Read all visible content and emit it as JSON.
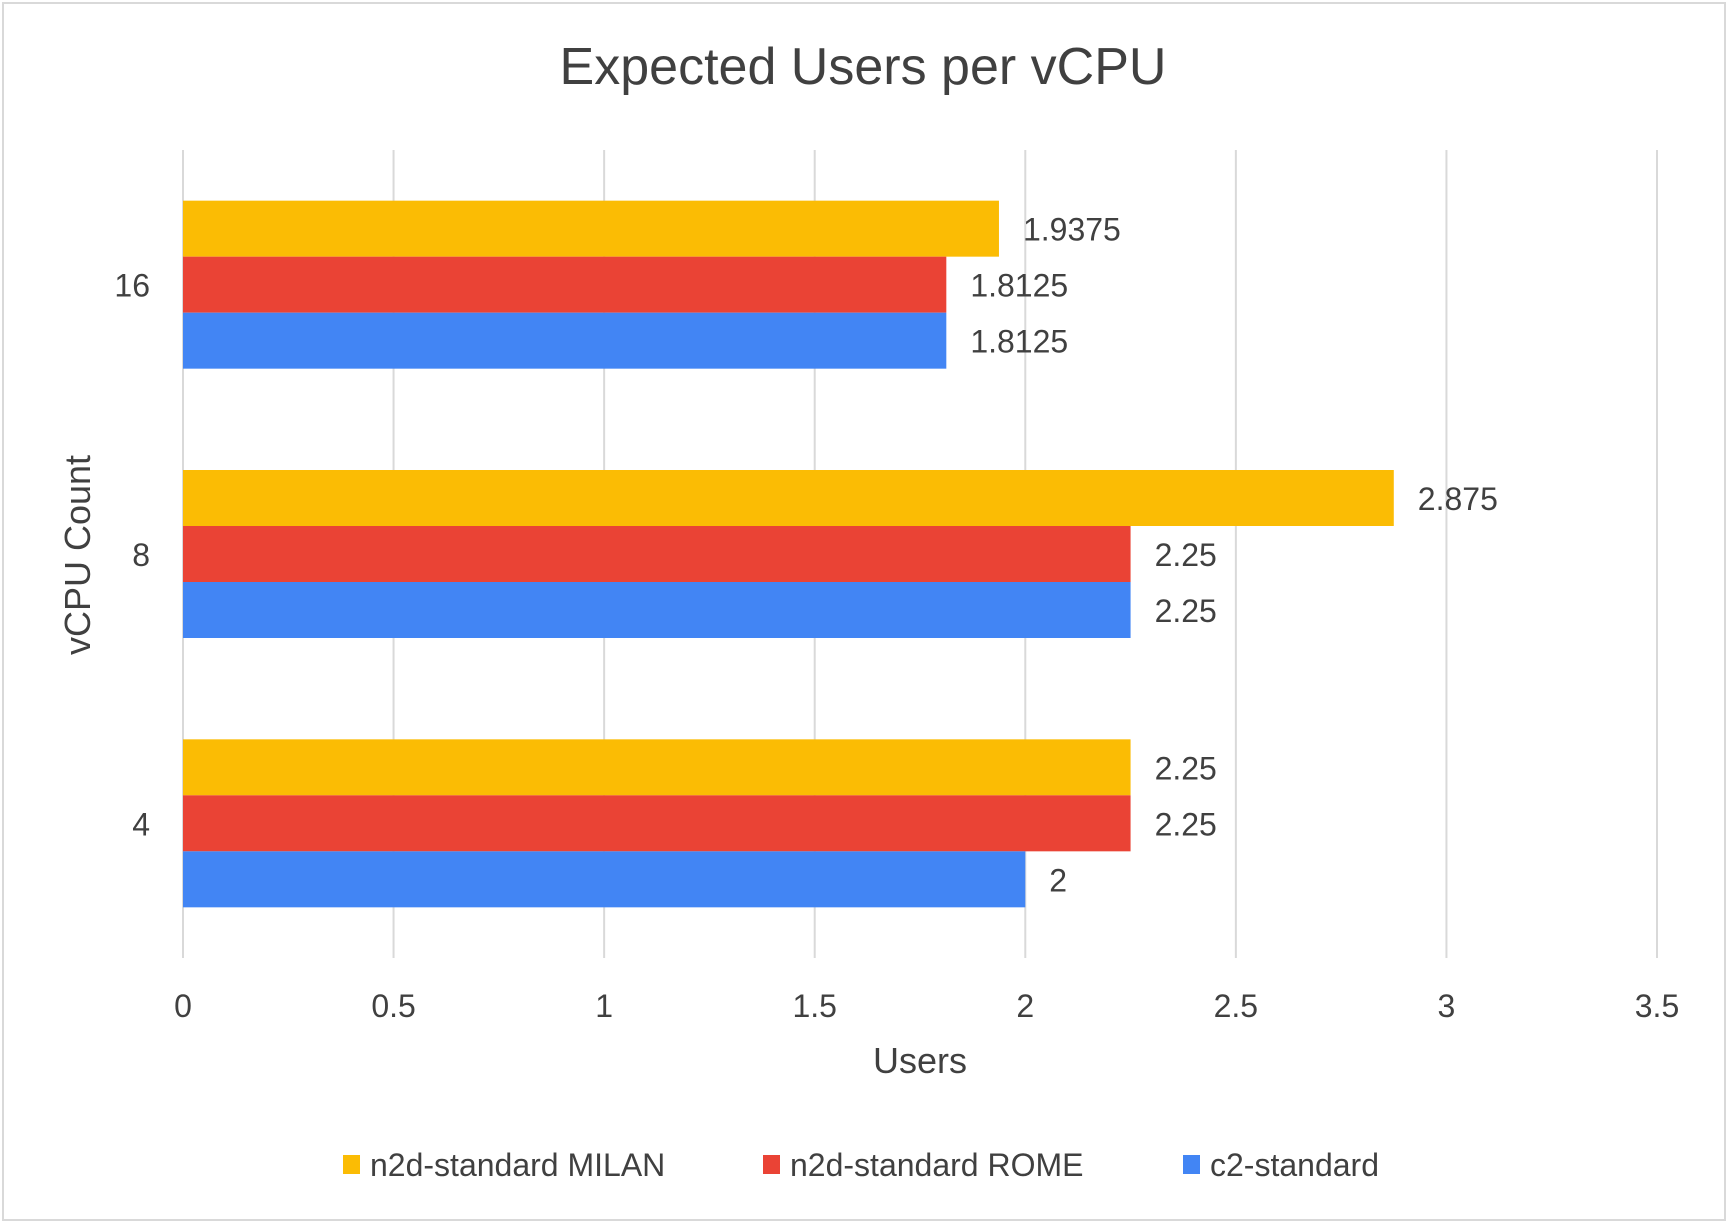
{
  "chart_data": {
    "type": "bar",
    "orientation": "horizontal",
    "title": "Expected Users per vCPU",
    "xlabel": "Users",
    "ylabel": "vCPU Count",
    "categories": [
      "16",
      "8",
      "4"
    ],
    "series": [
      {
        "name": "n2d-standard MILAN",
        "color": "#fbbc04",
        "values": [
          1.9375,
          2.875,
          2.25
        ]
      },
      {
        "name": "n2d-standard ROME",
        "color": "#ea4335",
        "values": [
          1.8125,
          2.25,
          2.25
        ]
      },
      {
        "name": "c2-standard",
        "color": "#4285f4",
        "values": [
          1.8125,
          2.25,
          2
        ]
      }
    ],
    "xlim": [
      0,
      3.5
    ],
    "xticks": [
      "0",
      "0.5",
      "1",
      "1.5",
      "2",
      "2.5",
      "3",
      "3.5"
    ],
    "grid": true,
    "legend": "bottom"
  }
}
